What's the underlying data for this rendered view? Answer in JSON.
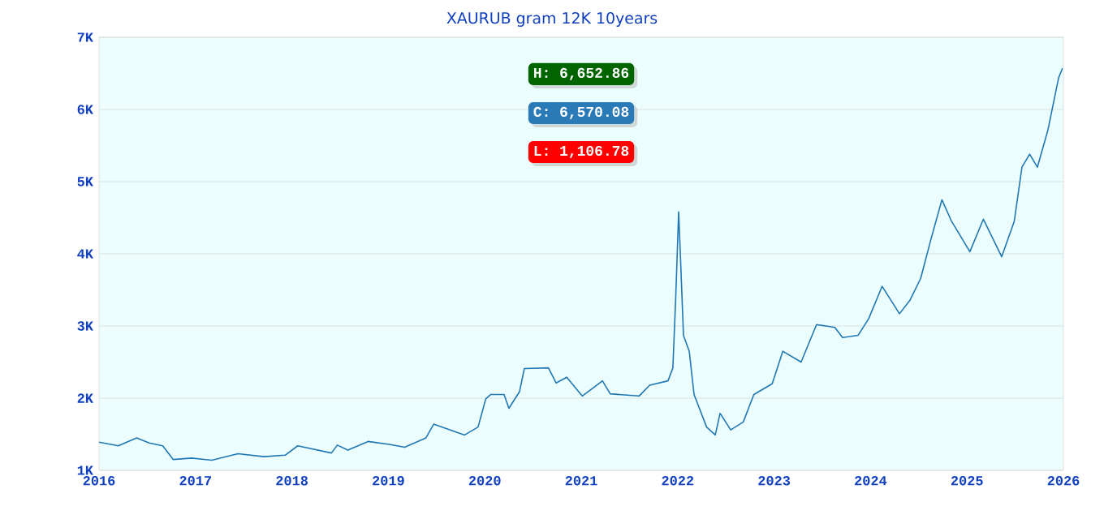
{
  "chart_data": {
    "type": "line",
    "title": "XAURUB gram 12K 10years",
    "x": [
      2016.0,
      2016.2,
      2016.39,
      2016.52,
      2016.66,
      2016.77,
      2016.96,
      2017.17,
      2017.44,
      2017.71,
      2017.93,
      2018.06,
      2018.41,
      2018.47,
      2018.58,
      2018.79,
      2019.01,
      2019.17,
      2019.39,
      2019.47,
      2019.66,
      2019.79,
      2019.93,
      2020.01,
      2020.06,
      2020.2,
      2020.25,
      2020.36,
      2020.41,
      2020.66,
      2020.74,
      2020.85,
      2021.01,
      2021.14,
      2021.22,
      2021.3,
      2021.6,
      2021.71,
      2021.9,
      2021.95,
      2021.98,
      2022.01,
      2022.03,
      2022.06,
      2022.12,
      2022.17,
      2022.3,
      2022.39,
      2022.44,
      2022.55,
      2022.68,
      2022.79,
      2022.98,
      2023.09,
      2023.28,
      2023.44,
      2023.63,
      2023.71,
      2023.87,
      2023.98,
      2024.12,
      2024.3,
      2024.41,
      2024.52,
      2024.63,
      2024.74,
      2024.84,
      2025.03,
      2025.17,
      2025.36,
      2025.49,
      2025.57,
      2025.65,
      2025.73,
      2025.84,
      2025.95,
      2025.99
    ],
    "values": [
      1390,
      1340,
      1450,
      1380,
      1340,
      1150,
      1170,
      1140,
      1230,
      1190,
      1210,
      1340,
      1240,
      1350,
      1280,
      1400,
      1360,
      1320,
      1450,
      1640,
      1550,
      1490,
      1600,
      1990,
      2050,
      2050,
      1860,
      2090,
      2410,
      2420,
      2210,
      2290,
      2030,
      2160,
      2240,
      2060,
      2030,
      2180,
      2240,
      2420,
      3400,
      4580,
      3920,
      2870,
      2650,
      2050,
      1600,
      1490,
      1790,
      1560,
      1670,
      2050,
      2200,
      2650,
      2500,
      3020,
      2980,
      2840,
      2870,
      3100,
      3550,
      3170,
      3360,
      3660,
      4220,
      4750,
      4450,
      4030,
      4480,
      3960,
      4450,
      5200,
      5380,
      5200,
      5720,
      6440,
      6570
    ],
    "color": "#1f77b4",
    "xlim": [
      2016,
      2026
    ],
    "xticks": [
      2016,
      2017,
      2018,
      2019,
      2020,
      2021,
      2022,
      2023,
      2024,
      2025,
      2026
    ],
    "ylim": [
      1000,
      7000
    ],
    "yticks": [
      {
        "value": 1000,
        "label": "1K"
      },
      {
        "value": 2000,
        "label": "2K"
      },
      {
        "value": 3000,
        "label": "3K"
      },
      {
        "value": 4000,
        "label": "4K"
      },
      {
        "value": 5000,
        "label": "5K"
      },
      {
        "value": 6000,
        "label": "6K"
      },
      {
        "value": 7000,
        "label": "7K"
      }
    ],
    "grid": "y",
    "annotations": [
      "H: 6,652.86",
      "C: 6,570.08",
      "L: 1,106.78"
    ]
  }
}
